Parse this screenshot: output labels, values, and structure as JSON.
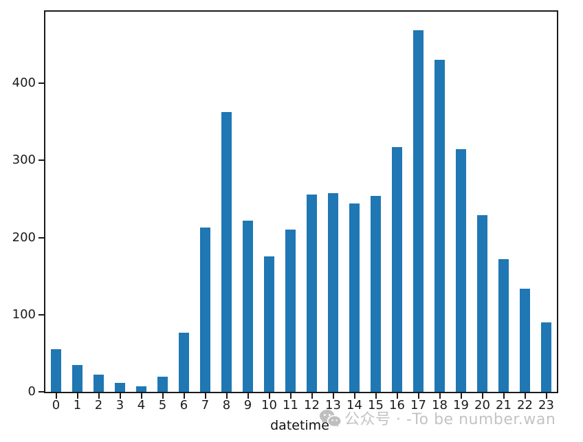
{
  "chart_data": {
    "type": "bar",
    "title": "",
    "xlabel": "datetime",
    "ylabel": "",
    "categories": [
      "0",
      "1",
      "2",
      "3",
      "4",
      "5",
      "6",
      "7",
      "8",
      "9",
      "10",
      "11",
      "12",
      "13",
      "14",
      "15",
      "16",
      "17",
      "18",
      "19",
      "20",
      "21",
      "22",
      "23"
    ],
    "values": [
      55,
      35,
      22,
      12,
      7,
      20,
      77,
      213,
      363,
      222,
      176,
      210,
      256,
      258,
      244,
      254,
      317,
      469,
      431,
      315,
      229,
      172,
      134,
      90
    ],
    "ylim": [
      0,
      493
    ],
    "yticks": [
      0,
      100,
      200,
      300,
      400
    ],
    "bar_color": "#1f77b4",
    "bar_width_fraction": 0.5,
    "grid": false,
    "legend": "none"
  },
  "axis": {
    "spine_color": "#1a1a1a",
    "tick_color": "#1a1a1a",
    "tick_label_color": "#1a1a1a"
  },
  "watermark": {
    "icon": "wechat-icon",
    "text": "公众号 · -To be number.wan",
    "color": "#b3b3b3"
  }
}
